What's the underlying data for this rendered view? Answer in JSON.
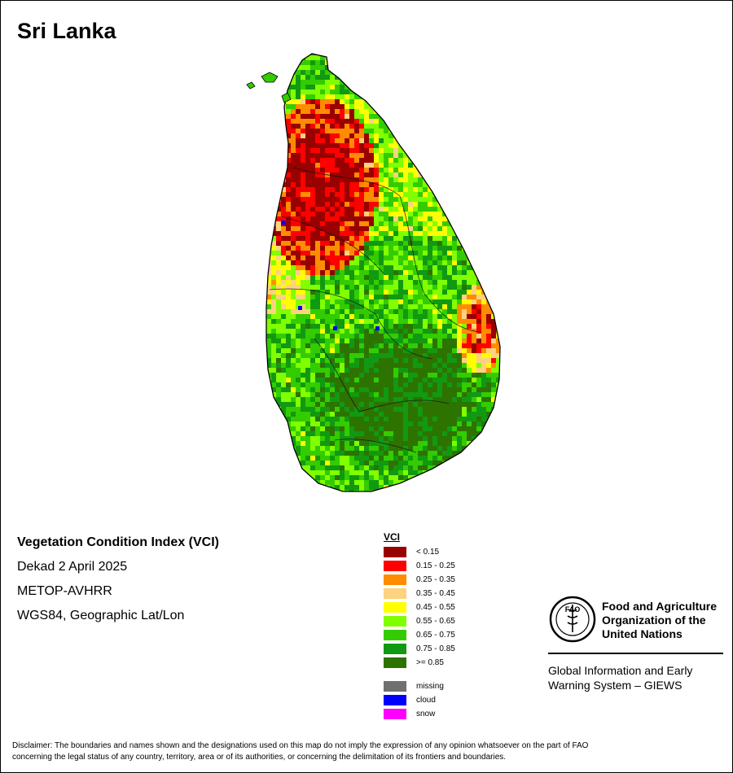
{
  "title": "Sri Lanka",
  "map_info": {
    "index_name": "Vegetation Condition Index (VCI)",
    "period": "Dekad 2 April 2025",
    "sensor": "METOP-AVHRR",
    "projection": "WGS84, Geographic Lat/Lon"
  },
  "legend": {
    "title": "VCI",
    "classes": [
      {
        "label": "< 0.15",
        "color": "#990000"
      },
      {
        "label": "0.15 - 0.25",
        "color": "#ff0000"
      },
      {
        "label": "0.25 - 0.35",
        "color": "#ff8c00"
      },
      {
        "label": "0.35 - 0.45",
        "color": "#ffd27f"
      },
      {
        "label": "0.45 - 0.55",
        "color": "#ffff00"
      },
      {
        "label": "0.55 - 0.65",
        "color": "#80ff00"
      },
      {
        "label": "0.65 - 0.75",
        "color": "#33cc00"
      },
      {
        "label": "0.75 - 0.85",
        "color": "#119911"
      },
      {
        "label": ">= 0.85",
        "color": "#2d7300"
      }
    ],
    "special": [
      {
        "label": "missing",
        "color": "#707070"
      },
      {
        "label": "cloud",
        "color": "#0000ff"
      },
      {
        "label": "snow",
        "color": "#ff00ff"
      }
    ]
  },
  "fao": {
    "logo_letters": "FAO",
    "name_lines": [
      "Food and Agriculture",
      "Organization of the",
      "United Nations"
    ],
    "giews_lines": [
      "Global Information and Early",
      "Warning System – GIEWS"
    ]
  },
  "disclaimer_lines": [
    "Disclaimer: The boundaries and names shown and the designations used on this map do not imply the expression of any opinion whatsoever on the part of FAO",
    "concerning the legal status of any country, territory, area or of its authorities, or concerning the delimitation of its frontiers and boundaries."
  ]
}
